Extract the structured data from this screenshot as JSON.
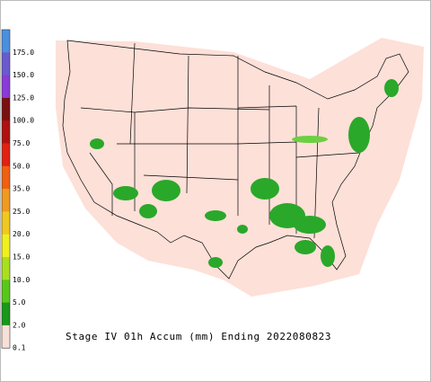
{
  "title": "Stage IV 01h Accum (mm) Ending 2022080823",
  "legend": {
    "items": [
      {
        "label": "175.0",
        "color": "#4a90e0"
      },
      {
        "label": "150.0",
        "color": "#6a5ad0"
      },
      {
        "label": "125.0",
        "color": "#8a3ad8"
      },
      {
        "label": "100.0",
        "color": "#7a1010"
      },
      {
        "label": "75.0",
        "color": "#b01010"
      },
      {
        "label": "50.0",
        "color": "#e02010"
      },
      {
        "label": "35.0",
        "color": "#f06010"
      },
      {
        "label": "25.0",
        "color": "#f09a20"
      },
      {
        "label": "20.0",
        "color": "#f0c820"
      },
      {
        "label": "15.0",
        "color": "#f0f020"
      },
      {
        "label": "10.0",
        "color": "#a8e020"
      },
      {
        "label": "5.0",
        "color": "#58c818"
      },
      {
        "label": "2.0",
        "color": "#189818"
      },
      {
        "label": "0.1",
        "color": "#f8e0d8"
      }
    ]
  }
}
